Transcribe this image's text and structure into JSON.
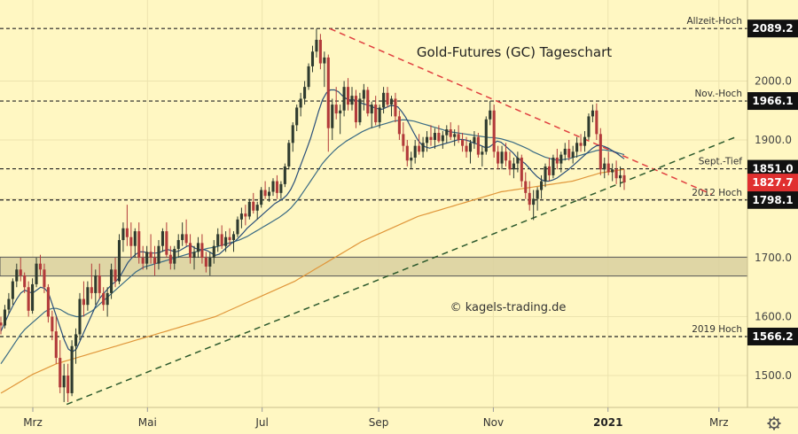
{
  "chart_data": {
    "type": "candlestick",
    "title": "Gold-Futures (GC) Tageschart",
    "watermark": "© kagels-trading.de",
    "ylim": [
      1440,
      2120
    ],
    "y_ticks": [
      1500.0,
      1600.0,
      1700.0,
      1800.0,
      1900.0,
      2000.0
    ],
    "y_tick_labels": [
      "1500.0",
      "1600.0",
      "1700.0",
      "1800.0",
      "1900.0",
      "2000.0"
    ],
    "x_labels": [
      {
        "label": "Mrz",
        "x": "2020-03"
      },
      {
        "label": "Mai",
        "x": "2020-05"
      },
      {
        "label": "Jul",
        "x": "2020-07"
      },
      {
        "label": "Sep",
        "x": "2020-09"
      },
      {
        "label": "Nov",
        "x": "2020-11"
      },
      {
        "label": "2021",
        "x": "2021-01",
        "bold": true
      },
      {
        "label": "Mrz",
        "x": "2021-03"
      }
    ],
    "levels": [
      {
        "name": "Allzeit-Hoch",
        "value": 2089.2,
        "label": "2089.2"
      },
      {
        "name": "Nov.-Hoch",
        "value": 1966.1,
        "label": "1966.1"
      },
      {
        "name": "Sept.-Tief",
        "value": 1851.0,
        "label": "1851.0"
      },
      {
        "name": "2012 Hoch",
        "value": 1798.1,
        "label": "1798.1"
      },
      {
        "name": "2019 Hoch",
        "value": 1566.2,
        "label": "1566.2"
      }
    ],
    "last_price": {
      "value": 1827.7,
      "label": "1827.7"
    },
    "zone": {
      "low": 1669,
      "high": 1701
    },
    "downtrend_line": {
      "from": [
        "2020-08-06",
        2089
      ],
      "to": [
        "2021-02-25",
        1808
      ]
    },
    "uptrend_line": {
      "from": [
        "2020-03-19",
        1451
      ],
      "to": [
        "2021-03-10",
        1905
      ]
    },
    "ohlc": [
      [
        1590,
        1600,
        1570,
        1585
      ],
      [
        1585,
        1620,
        1580,
        1612
      ],
      [
        1612,
        1640,
        1605,
        1630
      ],
      [
        1630,
        1665,
        1620,
        1660
      ],
      [
        1660,
        1690,
        1650,
        1680
      ],
      [
        1680,
        1700,
        1660,
        1670
      ],
      [
        1670,
        1675,
        1640,
        1650
      ],
      [
        1650,
        1660,
        1600,
        1610
      ],
      [
        1610,
        1665,
        1605,
        1655
      ],
      [
        1655,
        1700,
        1650,
        1690
      ],
      [
        1690,
        1705,
        1670,
        1680
      ],
      [
        1680,
        1690,
        1640,
        1650
      ],
      [
        1650,
        1655,
        1590,
        1600
      ],
      [
        1600,
        1610,
        1560,
        1575
      ],
      [
        1575,
        1600,
        1520,
        1530
      ],
      [
        1530,
        1560,
        1470,
        1480
      ],
      [
        1480,
        1520,
        1455,
        1500
      ],
      [
        1500,
        1520,
        1455,
        1470
      ],
      [
        1470,
        1560,
        1465,
        1550
      ],
      [
        1550,
        1580,
        1520,
        1570
      ],
      [
        1570,
        1640,
        1560,
        1630
      ],
      [
        1630,
        1660,
        1600,
        1620
      ],
      [
        1620,
        1660,
        1610,
        1650
      ],
      [
        1650,
        1690,
        1630,
        1640
      ],
      [
        1640,
        1680,
        1620,
        1670
      ],
      [
        1670,
        1690,
        1630,
        1640
      ],
      [
        1640,
        1650,
        1610,
        1620
      ],
      [
        1620,
        1650,
        1600,
        1640
      ],
      [
        1640,
        1690,
        1630,
        1680
      ],
      [
        1680,
        1700,
        1650,
        1660
      ],
      [
        1660,
        1740,
        1655,
        1730
      ],
      [
        1730,
        1760,
        1710,
        1750
      ],
      [
        1750,
        1790,
        1720,
        1735
      ],
      [
        1735,
        1760,
        1700,
        1720
      ],
      [
        1720,
        1750,
        1700,
        1745
      ],
      [
        1745,
        1760,
        1690,
        1700
      ],
      [
        1700,
        1720,
        1680,
        1690
      ],
      [
        1690,
        1720,
        1680,
        1710
      ],
      [
        1710,
        1740,
        1690,
        1700
      ],
      [
        1700,
        1720,
        1670,
        1690
      ],
      [
        1690,
        1730,
        1680,
        1720
      ],
      [
        1720,
        1750,
        1710,
        1745
      ],
      [
        1745,
        1760,
        1700,
        1705
      ],
      [
        1705,
        1720,
        1680,
        1690
      ],
      [
        1690,
        1720,
        1680,
        1715
      ],
      [
        1715,
        1740,
        1700,
        1730
      ],
      [
        1730,
        1760,
        1720,
        1740
      ],
      [
        1740,
        1765,
        1720,
        1725
      ],
      [
        1725,
        1740,
        1690,
        1700
      ],
      [
        1700,
        1720,
        1680,
        1710
      ],
      [
        1710,
        1735,
        1700,
        1725
      ],
      [
        1725,
        1740,
        1690,
        1700
      ],
      [
        1700,
        1710,
        1675,
        1685
      ],
      [
        1685,
        1710,
        1670,
        1700
      ],
      [
        1700,
        1730,
        1690,
        1720
      ],
      [
        1720,
        1750,
        1710,
        1740
      ],
      [
        1740,
        1755,
        1715,
        1720
      ],
      [
        1720,
        1745,
        1710,
        1735
      ],
      [
        1735,
        1750,
        1720,
        1730
      ],
      [
        1730,
        1745,
        1710,
        1740
      ],
      [
        1740,
        1770,
        1735,
        1765
      ],
      [
        1765,
        1785,
        1750,
        1775
      ],
      [
        1775,
        1790,
        1755,
        1770
      ],
      [
        1770,
        1800,
        1765,
        1795
      ],
      [
        1795,
        1810,
        1775,
        1780
      ],
      [
        1780,
        1795,
        1765,
        1790
      ],
      [
        1790,
        1820,
        1785,
        1815
      ],
      [
        1815,
        1830,
        1800,
        1805
      ],
      [
        1805,
        1820,
        1795,
        1812
      ],
      [
        1812,
        1835,
        1805,
        1830
      ],
      [
        1830,
        1840,
        1800,
        1810
      ],
      [
        1810,
        1830,
        1800,
        1825
      ],
      [
        1825,
        1860,
        1820,
        1855
      ],
      [
        1855,
        1900,
        1850,
        1895
      ],
      [
        1895,
        1930,
        1880,
        1925
      ],
      [
        1925,
        1960,
        1915,
        1955
      ],
      [
        1955,
        1980,
        1940,
        1970
      ],
      [
        1970,
        2000,
        1960,
        1990
      ],
      [
        1990,
        2030,
        1985,
        2025
      ],
      [
        2025,
        2060,
        2015,
        2050
      ],
      [
        2050,
        2089,
        2040,
        2070
      ],
      [
        2070,
        2080,
        2020,
        2030
      ],
      [
        2030,
        2050,
        1990,
        2040
      ],
      [
        2040,
        2045,
        1880,
        1920
      ],
      [
        1920,
        1970,
        1900,
        1960
      ],
      [
        1960,
        1990,
        1935,
        1945
      ],
      [
        1945,
        1960,
        1910,
        1950
      ],
      [
        1950,
        2000,
        1940,
        1990
      ],
      [
        1990,
        2005,
        1950,
        1960
      ],
      [
        1960,
        1990,
        1950,
        1975
      ],
      [
        1975,
        1985,
        1920,
        1930
      ],
      [
        1930,
        1980,
        1925,
        1970
      ],
      [
        1970,
        1995,
        1950,
        1985
      ],
      [
        1985,
        1990,
        1940,
        1945
      ],
      [
        1945,
        1965,
        1920,
        1960
      ],
      [
        1960,
        1975,
        1925,
        1930
      ],
      [
        1930,
        1960,
        1920,
        1955
      ],
      [
        1955,
        1990,
        1945,
        1980
      ],
      [
        1980,
        1990,
        1955,
        1960
      ],
      [
        1960,
        1975,
        1940,
        1970
      ],
      [
        1970,
        1980,
        1930,
        1940
      ],
      [
        1940,
        1950,
        1900,
        1910
      ],
      [
        1910,
        1930,
        1880,
        1890
      ],
      [
        1890,
        1900,
        1855,
        1865
      ],
      [
        1865,
        1880,
        1852,
        1870
      ],
      [
        1870,
        1900,
        1860,
        1890
      ],
      [
        1890,
        1910,
        1875,
        1880
      ],
      [
        1880,
        1905,
        1870,
        1895
      ],
      [
        1895,
        1915,
        1880,
        1905
      ],
      [
        1905,
        1925,
        1890,
        1900
      ],
      [
        1900,
        1920,
        1885,
        1912
      ],
      [
        1912,
        1925,
        1895,
        1898
      ],
      [
        1898,
        1915,
        1885,
        1908
      ],
      [
        1908,
        1925,
        1895,
        1918
      ],
      [
        1918,
        1930,
        1900,
        1905
      ],
      [
        1905,
        1918,
        1890,
        1910
      ],
      [
        1910,
        1925,
        1895,
        1900
      ],
      [
        1900,
        1912,
        1880,
        1890
      ],
      [
        1890,
        1905,
        1870,
        1880
      ],
      [
        1880,
        1900,
        1860,
        1895
      ],
      [
        1895,
        1915,
        1885,
        1905
      ],
      [
        1905,
        1912,
        1870,
        1875
      ],
      [
        1875,
        1890,
        1855,
        1880
      ],
      [
        1880,
        1940,
        1875,
        1935
      ],
      [
        1935,
        1966,
        1925,
        1950
      ],
      [
        1950,
        1960,
        1870,
        1880
      ],
      [
        1880,
        1890,
        1850,
        1860
      ],
      [
        1860,
        1890,
        1850,
        1880
      ],
      [
        1880,
        1895,
        1855,
        1865
      ],
      [
        1865,
        1880,
        1840,
        1850
      ],
      [
        1850,
        1870,
        1835,
        1860
      ],
      [
        1860,
        1880,
        1845,
        1870
      ],
      [
        1870,
        1875,
        1820,
        1830
      ],
      [
        1830,
        1845,
        1800,
        1810
      ],
      [
        1810,
        1830,
        1780,
        1790
      ],
      [
        1790,
        1815,
        1764,
        1800
      ],
      [
        1800,
        1820,
        1780,
        1815
      ],
      [
        1815,
        1840,
        1800,
        1830
      ],
      [
        1830,
        1860,
        1820,
        1855
      ],
      [
        1855,
        1870,
        1830,
        1840
      ],
      [
        1840,
        1875,
        1835,
        1870
      ],
      [
        1870,
        1885,
        1850,
        1860
      ],
      [
        1860,
        1880,
        1845,
        1875
      ],
      [
        1875,
        1895,
        1865,
        1885
      ],
      [
        1885,
        1900,
        1865,
        1870
      ],
      [
        1870,
        1890,
        1860,
        1880
      ],
      [
        1880,
        1905,
        1870,
        1895
      ],
      [
        1895,
        1910,
        1880,
        1890
      ],
      [
        1890,
        1915,
        1880,
        1905
      ],
      [
        1905,
        1945,
        1900,
        1940
      ],
      [
        1940,
        1960,
        1930,
        1950
      ],
      [
        1950,
        1962,
        1900,
        1910
      ],
      [
        1910,
        1920,
        1840,
        1850
      ],
      [
        1850,
        1870,
        1835,
        1860
      ],
      [
        1860,
        1880,
        1840,
        1845
      ],
      [
        1845,
        1860,
        1830,
        1850
      ],
      [
        1850,
        1865,
        1825,
        1835
      ],
      [
        1835,
        1855,
        1820,
        1840
      ],
      [
        1840,
        1850,
        1815,
        1828
      ]
    ],
    "ma_short": [
      1575,
      1590,
      1605,
      1618,
      1630,
      1640,
      1645,
      1642,
      1640,
      1645,
      1650,
      1648,
      1640,
      1620,
      1600,
      1580,
      1560,
      1545,
      1540,
      1545,
      1560,
      1575,
      1590,
      1605,
      1620,
      1632,
      1640,
      1648,
      1655,
      1660,
      1668,
      1680,
      1692,
      1700,
      1706,
      1710,
      1710,
      1708,
      1708,
      1708,
      1709,
      1712,
      1714,
      1712,
      1710,
      1712,
      1716,
      1720,
      1720,
      1716,
      1714,
      1714,
      1712,
      1708,
      1704,
      1706,
      1712,
      1718,
      1724,
      1728,
      1735,
      1742,
      1750,
      1756,
      1762,
      1768,
      1774,
      1780,
      1786,
      1792,
      1796,
      1800,
      1806,
      1816,
      1830,
      1848,
      1866,
      1884,
      1903,
      1925,
      1948,
      1968,
      1980,
      1985,
      1985,
      1982,
      1975,
      1970,
      1968,
      1968,
      1966,
      1962,
      1960,
      1958,
      1955,
      1953,
      1952,
      1955,
      1958,
      1958,
      1956,
      1948,
      1938,
      1925,
      1912,
      1900,
      1892,
      1888,
      1886,
      1888,
      1890,
      1892,
      1894,
      1896,
      1898,
      1900,
      1901,
      1900,
      1898,
      1895,
      1893,
      1890,
      1887,
      1888,
      1893,
      1898,
      1896,
      1890,
      1884,
      1878,
      1870,
      1865,
      1860,
      1853,
      1845,
      1838,
      1833,
      1830,
      1830,
      1832,
      1835,
      1840,
      1845,
      1850,
      1856,
      1862,
      1868,
      1874,
      1880,
      1886,
      1890,
      1891,
      1889,
      1886,
      1882,
      1878,
      1873,
      1868
    ],
    "ma_mid": [
      1520,
      1530,
      1540,
      1550,
      1560,
      1570,
      1578,
      1584,
      1590,
      1596,
      1602,
      1608,
      1612,
      1614,
      1614,
      1612,
      1608,
      1604,
      1602,
      1600,
      1600,
      1602,
      1606,
      1610,
      1616,
      1622,
      1628,
      1634,
      1640,
      1646,
      1652,
      1658,
      1664,
      1670,
      1676,
      1680,
      1684,
      1686,
      1688,
      1690,
      1692,
      1694,
      1696,
      1698,
      1700,
      1702,
      1704,
      1706,
      1708,
      1710,
      1712,
      1714,
      1716,
      1717,
      1718,
      1720,
      1722,
      1724,
      1726,
      1728,
      1730,
      1733,
      1736,
      1740,
      1744,
      1748,
      1752,
      1756,
      1760,
      1764,
      1768,
      1773,
      1778,
      1784,
      1792,
      1800,
      1810,
      1820,
      1830,
      1840,
      1850,
      1860,
      1868,
      1875,
      1882,
      1888,
      1893,
      1898,
      1902,
      1906,
      1910,
      1914,
      1917,
      1920,
      1922,
      1924,
      1926,
      1928,
      1930,
      1932,
      1933,
      1934,
      1934,
      1933,
      1932,
      1930,
      1928,
      1926,
      1924,
      1922,
      1920,
      1918,
      1916,
      1914,
      1913,
      1912,
      1911,
      1910,
      1909,
      1908,
      1907,
      1906,
      1905,
      1904,
      1904,
      1903,
      1902,
      1900,
      1898,
      1896,
      1893,
      1890,
      1887,
      1884,
      1880,
      1877,
      1874,
      1871,
      1869,
      1867,
      1866,
      1866,
      1867,
      1868,
      1870,
      1872,
      1874,
      1876,
      1878,
      1880,
      1882,
      1883,
      1883,
      1882,
      1881,
      1879,
      1877,
      1875
    ],
    "ma_long": [
      1470,
      1474,
      1478,
      1482,
      1486,
      1490,
      1494,
      1498,
      1502,
      1505,
      1508,
      1511,
      1514,
      1517,
      1520,
      1522,
      1524,
      1526,
      1528,
      1530,
      1532,
      1534,
      1536,
      1538,
      1540,
      1542,
      1544,
      1546,
      1548,
      1550,
      1552,
      1554,
      1556,
      1558,
      1560,
      1562,
      1564,
      1566,
      1568,
      1570,
      1572,
      1574,
      1576,
      1578,
      1580,
      1582,
      1584,
      1586,
      1588,
      1590,
      1592,
      1594,
      1596,
      1598,
      1600,
      1603,
      1606,
      1609,
      1612,
      1615,
      1618,
      1621,
      1624,
      1627,
      1630,
      1633,
      1636,
      1639,
      1642,
      1645,
      1648,
      1651,
      1654,
      1657,
      1660,
      1664,
      1668,
      1672,
      1676,
      1680,
      1684,
      1688,
      1692,
      1696,
      1700,
      1704,
      1708,
      1712,
      1716,
      1720,
      1724,
      1728,
      1731,
      1734,
      1737,
      1740,
      1743,
      1746,
      1749,
      1752,
      1755,
      1758,
      1761,
      1764,
      1767,
      1770,
      1772,
      1774,
      1776,
      1778,
      1780,
      1782,
      1784,
      1786,
      1788,
      1790,
      1792,
      1794,
      1796,
      1798,
      1800,
      1802,
      1804,
      1806,
      1808,
      1810,
      1812,
      1813,
      1814,
      1815,
      1816,
      1817,
      1818,
      1819,
      1820,
      1821,
      1822,
      1823,
      1824,
      1825,
      1826,
      1827,
      1828,
      1829,
      1830,
      1832,
      1834,
      1836,
      1838,
      1840,
      1842,
      1844,
      1845,
      1846,
      1847,
      1848,
      1849,
      1850
    ],
    "colors": {
      "background": "#fff7c2",
      "up": "#2f3b2f",
      "down": "#b23a3a",
      "ma_short": "#2a4f7a",
      "ma_mid": "#3a6b84",
      "ma_long": "#e0963a",
      "downtrend": "#e04040",
      "uptrend": "#2d5a2d",
      "level_line": "#222222",
      "tag_bg": "#111111",
      "last_tag_bg": "#e03030",
      "zone_fill": "#d9d0a0"
    }
  },
  "settings_icon": "gear-icon"
}
